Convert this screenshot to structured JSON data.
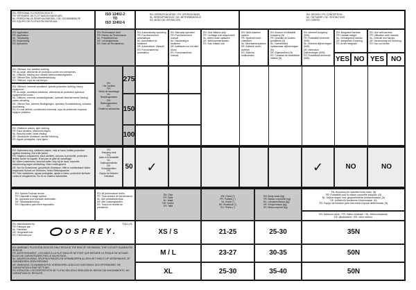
{
  "header": {
    "title": "EN: PERSONAL FLOTATION DEVICE\nFR: VÊTEMENT DE FLOTTAISON INDIVIDUEL\nNL: PERSOONLIJK DRIJFHULPMIDDEL / DE: SCHWIMMHILFE\nES: EQUIPO DE FLOTACIÓN INDIVIDUAL",
    "iso": "ISO 12402-2\nTO\nISO 12402-6",
    "operation_mode": "EN: OPERATION MODE / FR: OPÉRATIONNEL\nNL: BEDRIJFSMODUS / DE: BETRIEBSMODUS\nES: MODO DE OPERACIÓN",
    "design": "EN: DESIGN / FR: CONCEPTION\nNL: ONTWERP / DE: GESTALTUNG\nES: DISEÑO"
  },
  "subheader": {
    "application": "EN: Application\nFR: Application\nNL: Toepassing\nDE: Anwendung\nES: Aplicación",
    "performance": "EN: Performance level\nFR: Niveau de Performance\nNL: Prestatieniveau\nDE: Leistungsniveau\nES: Nivel de Rendimiento",
    "auto": "EN: Automatically operating\nFR: Fonctionnement automatique\nNL: Automatisch te bedienen\nDE: Automatisch, Manuell.\nES: Funcionamiento automático",
    "manual": "EN: Manually operated\nFR: Fonctionnement manuel\nNL: Handmatig te bedienen\nDE: Aufblasen nur mit dem Mund\nES: Funcionamiento manual",
    "oral": "EN: Oral inflation only\nFR: Gonflage oral uniquement\nNL: Alleen orale opblazen\nDE: Mehrkammersystem\nES: Sólo inflado oral",
    "multi": "EN: Multi-chamber system\nFR: Système multi-chambres\nNL: Meerkamersysteem\nDE: Aufbrieb durch Auftrieb\nES: Sistema multicámara",
    "amount": "EN: Amount of inflatable buoyancy (N)\nFR: Quantité de bouées gonflables (N)\nNL: Hoeveelheid opblaasbaar drijfvermogen (N)\nDE: Eigenauftrieb (N)\nES: Cantidad de flotabilidad inflable (N)",
    "inherent": "EN: Inherent buoyancy (50N)\nFR: Flottabilité inhérente (50N)\nNL: Inherent drijfvermogen (50N)\nDE: Intrinsisch Drijfvermogen (50N)\nES: Flotabilidad inherente (50N)",
    "integrated": "EN: Integrated harness\nFR: Harnais intégré\nNL: Geïntegreerd harnas\nDE: Integrierter Gurtzeug\nES: Arnés integrado",
    "use_harness": "EN: Use with harness.\nFR: Utilisation avec harnais.\nNL: Gebruik met harnas.\nDE: Verwendung mit Gurtzeug.\nES: Uso con arnés.",
    "yes": "YES",
    "no": "NO"
  },
  "life_jackets": "EN:\nLife Jackets\nFR:\nGilets de sauvetage\nNL:\nReddingsvesten\nDE:\nRettungswesten\nES:\nChalecos salvavidas",
  "buoyancy_aids": "EN:\nBuoyancy aids\nFR:\nAides à la flottabilité\nNL:\nDrijfhulpmiddelen\nDE:\nSchwimmhilfen\nES:\nEquipo de flotación individual",
  "rows": [
    {
      "level": "275",
      "text": "EN: Offshore, foul weather clothing.\nFR: Au large, vêtements de protection contre les intempéries.\nNL: Offshore, kleding voor slechte weersomstandigheden.\nDE: Offener See, Schlechtwetterkleidung.\nES: Offshore, ropa de mal tiempo."
    },
    {
      "level": "150",
      "text": "EN: Offshore, extreme conditions, special protective clothing, heavy equipment.\nFR: Au large, conditions extrêmes, vêtements de protection spéciaux, équipements lourds.\nNL: Offshore, extreme omstandigheden, speciale beschermende kleding, zware uitrusting.\nDE: Offener See, extreme Bedingungen, spezielle Schutzkleidung, schwere Ausrüstung.\nES: En mar abierto, condiciones extremas, ropa de protección especial, equipos pesados."
    },
    {
      "level": "100",
      "text": "EN: Sheltered waters, light clothing.\nFR: Eaux abritées, vêtements légers.\nNL: Beschut water, lichte kleding.\nDE: Geschützte Gewässer, leichte Kleidung.\nES: Aguas protegidas, ropa ligera."
    },
    {
      "level": "50",
      "text": "EN: Swimmers only, sheltered waters, help at hand, limited protection against drowning. Not a life jacket.\nFR: Nageurs uniquement, eaux abritées, secours à proximité, protection limitée contre la noyade. N'est pas un gilet de sauvetage.\nNL: Alleen zwemmers, beschut water, hulp bij de hand, beperkte bescherming tegen verdrinking. Geen reddingsvest.\nDE: Nur für Schwimmer, geschützte Gewässer, Hilfe in unmittelbarer Nähe, begrenzter Schutz vor Ertrinken. Keine Rettungsweste.\nES: Solo nadadores, aguas protegidas, ayuda a mano, protección limitada contra el ahogamiento. No es un chaleco salvavidas.",
      "check": "✓",
      "harness": "NO",
      "use_harness": "NO"
    }
  ],
  "special": {
    "text": "EN: Special Purpose device.\nFR: Dispositif à usage spécial.\nNL: Apparaat voor speciale doeleinden.\nDE: Spezialausrüstung.\nES: Dispositivo para fines especiales.",
    "all_levels": "EN: All performance levels.\nFR: Tous niveaux de performance.\nNL: Alle prestatieniveaus.\nDE: Alle Leistungsstufen.\nES: Todos los niveles de prestación.",
    "size": "EN: Size\nFR: Taille\nNL: Maat\nDE: Größe\nES: Talla",
    "chest": "EN: Chest (\")\nFR: Poitrine (\")\nNL: Borst (\")\nDE: Brustkorb (\")\nES: Pecho (\")",
    "body_mass": "EN: Body mass (kg)\nFR: Masse corporelle (kg)\nNL: Lichaamsmassa (kg)\nDE: Körpermasse (kg)\nES: Masa corporal (kg)",
    "buoyancy": "EN: Buoyancy for specified body mass. (N)\nFR: Flottabilité pour la masse corporelle indiquée. (N)\nNL: Drijfvermogen voor gespecificeerde lichaamsmassa. (N)\nDE: Auftrieb für bestimmte Körpermasse. (N)\nES: Equipo de flotación para una masa corporal determinada. (N)",
    "minimum": "EN: Minimum value. / FR: Valeur minimale. / NL: Minimumwaarde.\nDE: Mindestwert. / ES: Valor mínimo."
  },
  "manufacturer": {
    "text": "EN: Manufactured by:\nFR: Fabriqué par:\nNL: Fabrikant:\nDE: Hergestellt von:\nES: Fabricado por:",
    "code": "TQ12-LTL",
    "logo": "OSPREY."
  },
  "warning": "EN: WARNING: FLOTATION DEVICES ONLY REDUCE THE RISK OF DROWNING. THEY DO NOT GUARANTEE RESCUE.\nFR: AVERTISSEMENT : LES AIDES À LA FLOTTABILITÉ NE FONT QUE RÉDUIRE LE RISQUE DE NOYADE. ELLES NE GARANTISSENT PAS LE SAUVETAGE.\nNL: WAARSCHUWING: DRIJFHULPMIDDELEN VERMINDEREN ALLEEN HET RISICO OP VERDRINKING. ZE GARANDEREN GEEN REDDING.\nDE: WARNUNG: SCHWIMMHILFEN VERRINGERN LEDIGLICH DAS RISIKO DES ERTRINKENS. SIE GARANTIEREN KEINE RETTUNG.\nES: ATENCIÓN: LOS DISPOSITIVOS DE FLOTACIÓN SÓLO REDUCEN EL RIESGO DE AHOGAMIENTO. NO GARANTIZAN EL RESCATE.",
  "sizes": [
    {
      "size": "XS / S",
      "chest": "21-25",
      "mass": "25-30",
      "buoyancy": "35N"
    },
    {
      "size": "M / L",
      "chest": "23-27",
      "mass": "30-35",
      "buoyancy": "50N"
    },
    {
      "size": "XL",
      "chest": "25-30",
      "mass": "35-40",
      "buoyancy": "50N"
    }
  ]
}
